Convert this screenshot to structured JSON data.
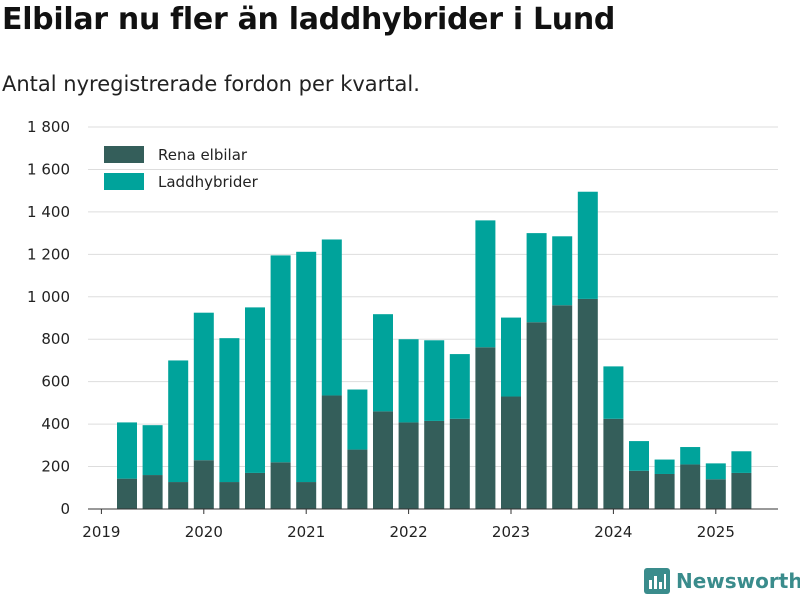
{
  "title": "Elbilar nu fler än laddhybrider i Lund",
  "subtitle": "Antal nyregistrerade fordon per kvartal.",
  "brand": {
    "name": "Newsworthy",
    "icon": "bar-chart-logo-icon",
    "color": "#3a8c8c"
  },
  "colors": {
    "Rena elbilar": "#345e5a",
    "Laddhybrider": "#00a39b",
    "grid": "#dddddd",
    "axis": "#333333"
  },
  "chart_data": {
    "type": "bar",
    "stacked": true,
    "x": [
      "2019 Q2",
      "2019 Q3",
      "2019 Q4",
      "2020 Q1",
      "2020 Q2",
      "2020 Q3",
      "2020 Q4",
      "2021 Q1",
      "2021 Q2",
      "2021 Q3",
      "2021 Q4",
      "2022 Q1",
      "2022 Q2",
      "2022 Q3",
      "2022 Q4",
      "2023 Q1",
      "2023 Q2",
      "2023 Q3",
      "2023 Q4",
      "2024 Q1",
      "2024 Q2",
      "2024 Q3",
      "2024 Q4",
      "2025 Q1",
      "2025 Q2"
    ],
    "series": [
      {
        "name": "Rena elbilar",
        "values": [
          143,
          160,
          127,
          230,
          127,
          170,
          220,
          127,
          535,
          280,
          460,
          408,
          415,
          425,
          762,
          530,
          880,
          960,
          990,
          425,
          180,
          165,
          210,
          140,
          170
        ]
      },
      {
        "name": "Laddhybrider",
        "values": [
          265,
          235,
          573,
          695,
          678,
          780,
          975,
          1085,
          735,
          283,
          458,
          392,
          380,
          305,
          598,
          372,
          420,
          325,
          505,
          247,
          140,
          68,
          82,
          75,
          102
        ]
      }
    ],
    "ylim": [
      0,
      1800
    ],
    "y_ticks": [
      "0",
      "200",
      "400",
      "600",
      "800",
      "1 000",
      "1 200",
      "1 400",
      "1 600",
      "1 800"
    ],
    "x_ticks": [
      "2019",
      "2020",
      "2021",
      "2022",
      "2023",
      "2024",
      "2025"
    ],
    "legend": {
      "placement": "top-left",
      "entries": [
        "Rena elbilar",
        "Laddhybrider"
      ]
    },
    "grid": true,
    "xlabel": "",
    "ylabel": ""
  }
}
